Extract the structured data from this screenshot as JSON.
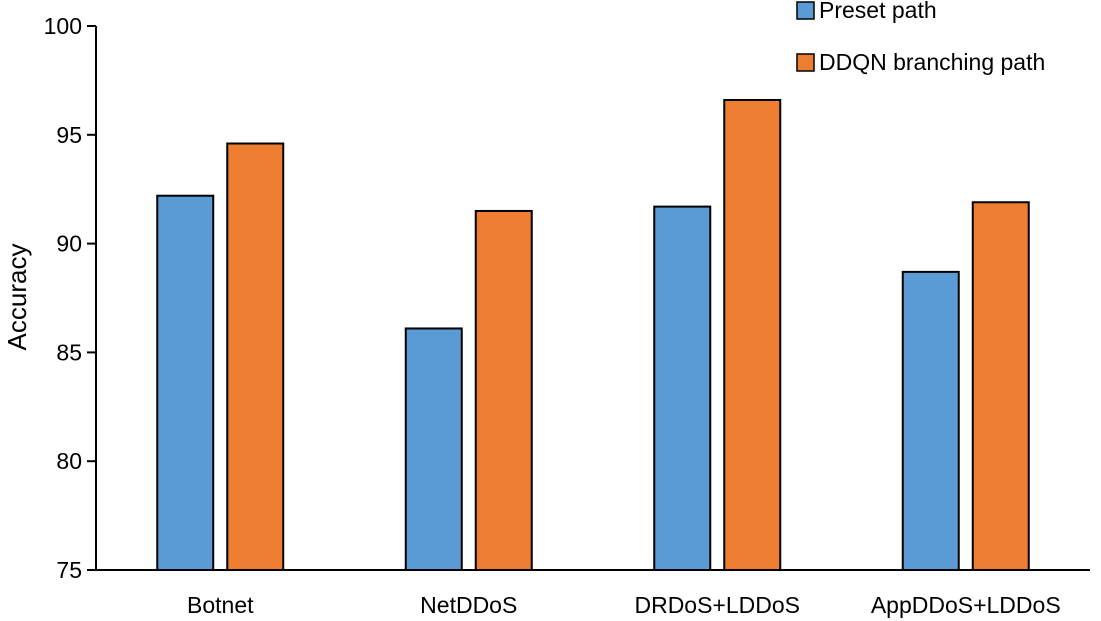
{
  "chart_data": {
    "type": "bar",
    "categories": [
      "Botnet",
      "NetDDoS",
      "DRDoS+LDDoS",
      "AppDDoS+LDDoS"
    ],
    "series": [
      {
        "name": "Preset path",
        "values": [
          92.2,
          86.1,
          91.7,
          88.7
        ],
        "color": "#5B9BD5"
      },
      {
        "name": "DDQN branching path",
        "values": [
          94.6,
          91.5,
          96.6,
          91.9
        ],
        "color": "#ED7D31"
      }
    ],
    "ylabel": "Accuracy",
    "ylim": [
      75,
      100
    ],
    "yticks": [
      75,
      80,
      85,
      90,
      95,
      100
    ],
    "grid": false,
    "legend_position": "top-right"
  }
}
